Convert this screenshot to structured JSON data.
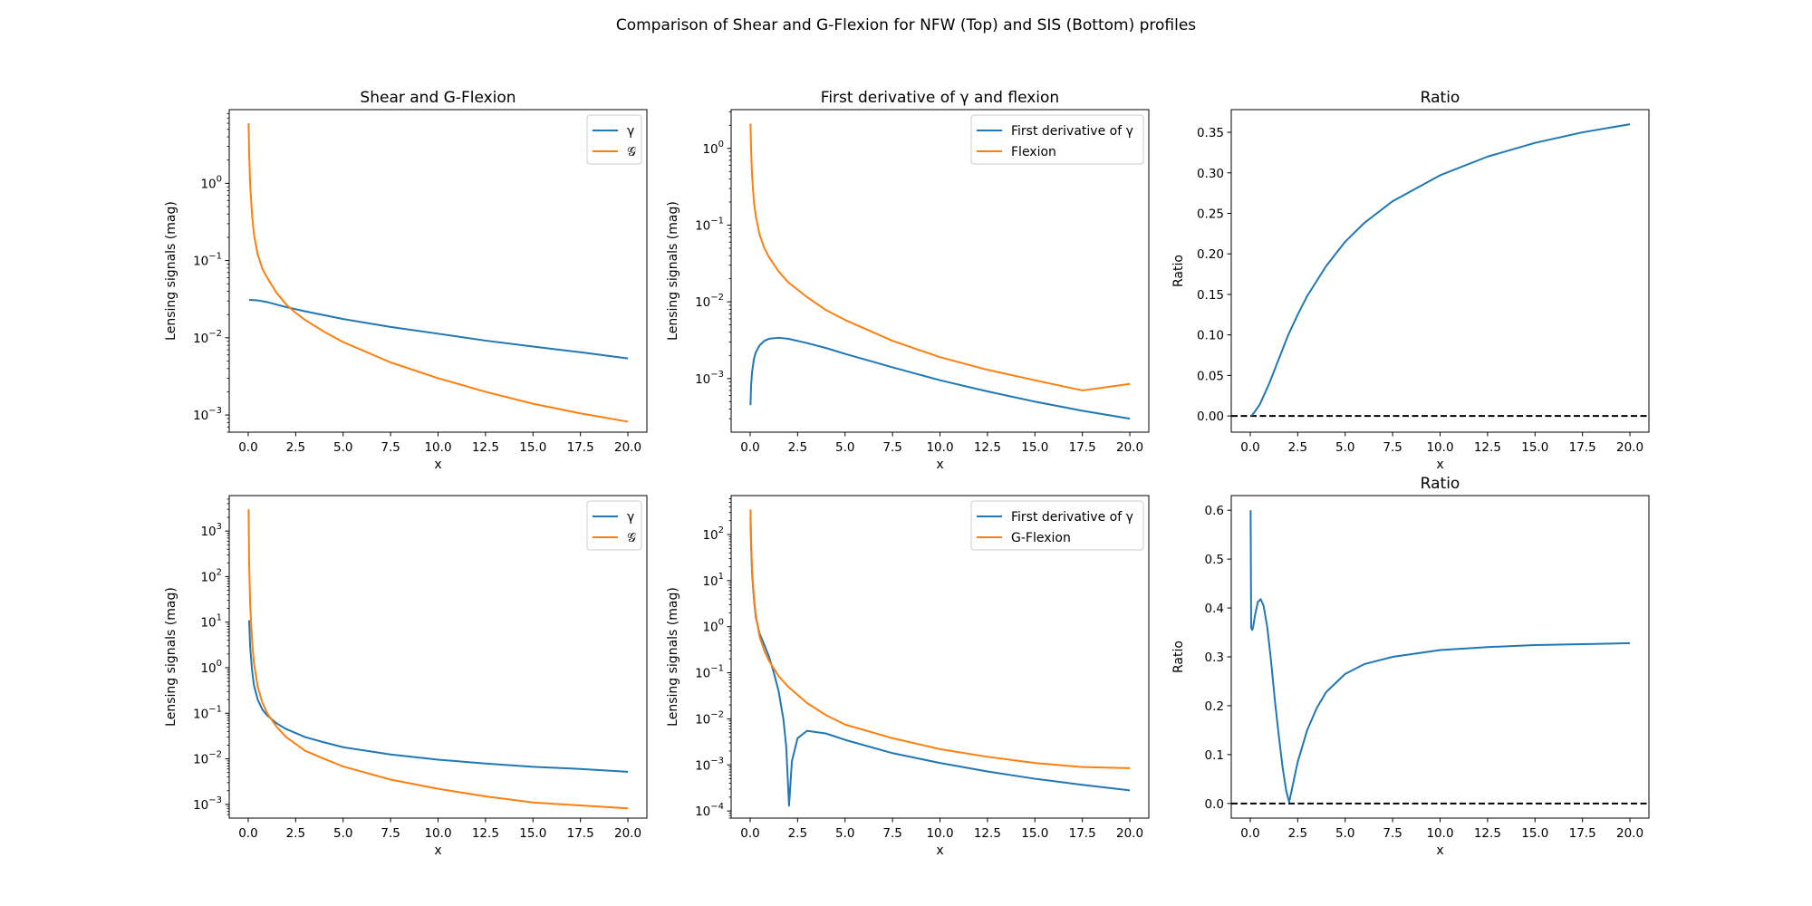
{
  "figure": {
    "suptitle": "Comparison of Shear and G-Flexion for NFW (Top) and SIS (Bottom) profiles"
  },
  "colors": {
    "blue": "#1f77b4",
    "orange": "#ff7f0e",
    "zero_line": "#000000"
  },
  "chart_data": [
    {
      "id": "nfw-shear",
      "type": "line",
      "title": "Shear and G-Flexion",
      "xlabel": "x",
      "ylabel": "Lensing signals (mag)",
      "yscale": "log",
      "xlim": [
        -1.0,
        21.0
      ],
      "ylim": [
        0.0006,
        9
      ],
      "xticks": [
        0,
        2.5,
        5,
        7.5,
        10,
        12.5,
        15,
        17.5,
        20
      ],
      "xtick_labels": [
        "0.0",
        "2.5",
        "5.0",
        "7.5",
        "10.0",
        "12.5",
        "15.0",
        "17.5",
        "20.0"
      ],
      "yticks": [
        0.001,
        0.01,
        0.1,
        1
      ],
      "ytick_labels": [
        [
          "10",
          "−3"
        ],
        [
          "10",
          "−2"
        ],
        [
          "10",
          "−1"
        ],
        [
          "10",
          "0"
        ]
      ],
      "legend": "top-right",
      "series": [
        {
          "name": "γ",
          "color": "#1f77b4",
          "x": [
            0.05,
            0.5,
            1,
            2,
            3,
            5,
            7.5,
            10,
            12.5,
            15,
            17.5,
            20
          ],
          "y": [
            0.031,
            0.0305,
            0.029,
            0.025,
            0.022,
            0.0175,
            0.0138,
            0.0113,
            0.0092,
            0.0077,
            0.0065,
            0.0054
          ]
        },
        {
          "name": "𝒢",
          "color": "#ff7f0e",
          "x": [
            0.02,
            0.05,
            0.1,
            0.2,
            0.3,
            0.5,
            0.75,
            1,
            1.5,
            2,
            2.5,
            3,
            4,
            5,
            7.5,
            10,
            12.5,
            15,
            17.5,
            20
          ],
          "y": [
            6.0,
            2.5,
            1.0,
            0.4,
            0.22,
            0.12,
            0.078,
            0.06,
            0.038,
            0.027,
            0.021,
            0.017,
            0.012,
            0.0088,
            0.0048,
            0.003,
            0.002,
            0.0014,
            0.00105,
            0.00082
          ]
        }
      ]
    },
    {
      "id": "nfw-derivative",
      "type": "line",
      "title": "First derivative of γ and flexion",
      "xlabel": "x",
      "ylabel": "Lensing signals (mag)",
      "yscale": "log",
      "xlim": [
        -1.0,
        21.0
      ],
      "ylim": [
        0.0002,
        3.2
      ],
      "xticks": [
        0,
        2.5,
        5,
        7.5,
        10,
        12.5,
        15,
        17.5,
        20
      ],
      "xtick_labels": [
        "0.0",
        "2.5",
        "5.0",
        "7.5",
        "10.0",
        "12.5",
        "15.0",
        "17.5",
        "20.0"
      ],
      "yticks": [
        0.001,
        0.01,
        0.1,
        1
      ],
      "ytick_labels": [
        [
          "10",
          "−3"
        ],
        [
          "10",
          "−2"
        ],
        [
          "10",
          "−1"
        ],
        [
          "10",
          "0"
        ]
      ],
      "legend": "top-right",
      "series": [
        {
          "name": "First derivative of γ",
          "color": "#1f77b4",
          "x": [
            0.02,
            0.05,
            0.1,
            0.2,
            0.3,
            0.5,
            0.75,
            1,
            1.5,
            2,
            3,
            4,
            5,
            7.5,
            10,
            12.5,
            15,
            17.5,
            20
          ],
          "y": [
            0.00045,
            0.0008,
            0.0012,
            0.0018,
            0.0022,
            0.0027,
            0.0031,
            0.0033,
            0.0034,
            0.0033,
            0.0029,
            0.0025,
            0.0021,
            0.0014,
            0.00095,
            0.00068,
            0.0005,
            0.00038,
            0.0003
          ]
        },
        {
          "name": "Flexion",
          "color": "#ff7f0e",
          "x": [
            0.02,
            0.05,
            0.1,
            0.2,
            0.3,
            0.5,
            0.75,
            1,
            1.5,
            2,
            3,
            4,
            5,
            7.5,
            10,
            12.5,
            15,
            17.5,
            20
          ],
          "y": [
            2.1,
            1.0,
            0.45,
            0.2,
            0.13,
            0.075,
            0.05,
            0.038,
            0.025,
            0.018,
            0.0115,
            0.0078,
            0.0058,
            0.0031,
            0.0019,
            0.0013,
            0.00095,
            0.0007,
            0.00085
          ]
        }
      ]
    },
    {
      "id": "nfw-ratio",
      "type": "line",
      "title": "Ratio",
      "xlabel": "x",
      "ylabel": "Ratio",
      "yscale": "linear",
      "xlim": [
        -1.0,
        21.0
      ],
      "ylim": [
        -0.02,
        0.378
      ],
      "xticks": [
        0,
        2.5,
        5,
        7.5,
        10,
        12.5,
        15,
        17.5,
        20
      ],
      "xtick_labels": [
        "0.0",
        "2.5",
        "5.0",
        "7.5",
        "10.0",
        "12.5",
        "15.0",
        "17.5",
        "20.0"
      ],
      "yticks": [
        0,
        0.05,
        0.1,
        0.15,
        0.2,
        0.25,
        0.3,
        0.35
      ],
      "ytick_labels": [
        "0.00",
        "0.05",
        "0.10",
        "0.15",
        "0.20",
        "0.25",
        "0.30",
        "0.35"
      ],
      "hline": 0,
      "series": [
        {
          "name": "",
          "color": "#1f77b4",
          "x": [
            0.05,
            0.2,
            0.5,
            1,
            1.5,
            2,
            2.5,
            3,
            4,
            5,
            6,
            7.5,
            10,
            12.5,
            15,
            17.5,
            20
          ],
          "y": [
            0.0,
            0.004,
            0.014,
            0.04,
            0.07,
            0.1,
            0.125,
            0.148,
            0.185,
            0.215,
            0.238,
            0.265,
            0.297,
            0.32,
            0.337,
            0.35,
            0.36
          ]
        }
      ]
    },
    {
      "id": "sis-shear",
      "type": "line",
      "title": "",
      "xlabel": "x",
      "ylabel": "Lensing signals (mag)",
      "yscale": "log",
      "xlim": [
        -1.0,
        21.0
      ],
      "ylim": [
        0.0005,
        6000
      ],
      "xticks": [
        0,
        2.5,
        5,
        7.5,
        10,
        12.5,
        15,
        17.5,
        20
      ],
      "xtick_labels": [
        "0.0",
        "2.5",
        "5.0",
        "7.5",
        "10.0",
        "12.5",
        "15.0",
        "17.5",
        "20.0"
      ],
      "yticks": [
        0.001,
        0.01,
        0.1,
        1,
        10,
        100,
        1000
      ],
      "ytick_labels": [
        [
          "10",
          "−3"
        ],
        [
          "10",
          "−2"
        ],
        [
          "10",
          "−1"
        ],
        [
          "10",
          "0"
        ],
        [
          "10",
          "1"
        ],
        [
          "10",
          "2"
        ],
        [
          "10",
          "3"
        ]
      ],
      "legend": "top-right",
      "series": [
        {
          "name": "γ",
          "color": "#1f77b4",
          "x": [
            0.05,
            0.1,
            0.2,
            0.3,
            0.5,
            0.75,
            1,
            1.5,
            2,
            3,
            4,
            5,
            7.5,
            10,
            12.5,
            15,
            17.5,
            20
          ],
          "y": [
            11,
            3,
            0.9,
            0.42,
            0.2,
            0.12,
            0.09,
            0.06,
            0.045,
            0.03,
            0.023,
            0.018,
            0.0125,
            0.0096,
            0.0079,
            0.0067,
            0.006,
            0.0052
          ]
        },
        {
          "name": "𝒢",
          "color": "#ff7f0e",
          "x": [
            0.02,
            0.05,
            0.1,
            0.2,
            0.3,
            0.5,
            0.75,
            1,
            1.5,
            2,
            3,
            4,
            5,
            7.5,
            10,
            12.5,
            15,
            17.5,
            20
          ],
          "y": [
            3000,
            200,
            26,
            4,
            1.3,
            0.38,
            0.17,
            0.1,
            0.05,
            0.03,
            0.015,
            0.01,
            0.0068,
            0.0035,
            0.0022,
            0.0015,
            0.0011,
            0.00095,
            0.00082
          ]
        }
      ]
    },
    {
      "id": "sis-derivative",
      "type": "line",
      "title": "",
      "xlabel": "x",
      "ylabel": "Lensing signals (mag)",
      "yscale": "log",
      "xlim": [
        -1.0,
        21.0
      ],
      "ylim": [
        7e-05,
        700
      ],
      "xticks": [
        0,
        2.5,
        5,
        7.5,
        10,
        12.5,
        15,
        17.5,
        20
      ],
      "xtick_labels": [
        "0.0",
        "2.5",
        "5.0",
        "7.5",
        "10.0",
        "12.5",
        "15.0",
        "17.5",
        "20.0"
      ],
      "yticks": [
        0.0001,
        0.001,
        0.01,
        0.1,
        1,
        10,
        100
      ],
      "ytick_labels": [
        [
          "10",
          "−4"
        ],
        [
          "10",
          "−3"
        ],
        [
          "10",
          "−2"
        ],
        [
          "10",
          "−1"
        ],
        [
          "10",
          "0"
        ],
        [
          "10",
          "1"
        ],
        [
          "10",
          "2"
        ]
      ],
      "legend": "top-right",
      "series": [
        {
          "name": "First derivative of γ",
          "color": "#1f77b4",
          "x": [
            0.02,
            0.05,
            0.1,
            0.2,
            0.3,
            0.5,
            0.75,
            1,
            1.25,
            1.5,
            1.75,
            1.9,
            2.05,
            2.2,
            2.5,
            3,
            4,
            5,
            7.5,
            10,
            12.5,
            15,
            17.5,
            20
          ],
          "y": [
            250,
            60,
            15,
            4,
            1.6,
            0.7,
            0.4,
            0.22,
            0.1,
            0.04,
            0.01,
            0.0025,
            0.00013,
            0.0012,
            0.0038,
            0.0055,
            0.0048,
            0.0035,
            0.0018,
            0.0011,
            0.00072,
            0.0005,
            0.00037,
            0.00028
          ]
        },
        {
          "name": "G-Flexion",
          "color": "#ff7f0e",
          "x": [
            0.02,
            0.05,
            0.1,
            0.2,
            0.3,
            0.5,
            0.75,
            1,
            1.5,
            2,
            3,
            4,
            5,
            7.5,
            10,
            12.5,
            15,
            17.5,
            20
          ],
          "y": [
            350,
            80,
            18,
            4.5,
            1.8,
            0.6,
            0.3,
            0.18,
            0.085,
            0.05,
            0.022,
            0.012,
            0.0075,
            0.0038,
            0.0022,
            0.0015,
            0.0011,
            0.0009,
            0.00085
          ]
        }
      ]
    },
    {
      "id": "sis-ratio",
      "type": "line",
      "title": "Ratio",
      "xlabel": "x",
      "ylabel": "Ratio",
      "yscale": "linear",
      "xlim": [
        -1.0,
        21.0
      ],
      "ylim": [
        -0.03,
        0.63
      ],
      "xticks": [
        0,
        2.5,
        5,
        7.5,
        10,
        12.5,
        15,
        17.5,
        20
      ],
      "xtick_labels": [
        "0.0",
        "2.5",
        "5.0",
        "7.5",
        "10.0",
        "12.5",
        "15.0",
        "17.5",
        "20.0"
      ],
      "yticks": [
        0,
        0.1,
        0.2,
        0.3,
        0.4,
        0.5,
        0.6
      ],
      "ytick_labels": [
        "0.0",
        "0.1",
        "0.2",
        "0.3",
        "0.4",
        "0.5",
        "0.6"
      ],
      "hline": 0,
      "series": [
        {
          "name": "",
          "color": "#1f77b4",
          "x": [
            0.02,
            0.05,
            0.1,
            0.15,
            0.25,
            0.4,
            0.55,
            0.7,
            0.9,
            1.1,
            1.3,
            1.5,
            1.7,
            1.9,
            2.05,
            2.2,
            2.5,
            3,
            3.5,
            4,
            5,
            6,
            7.5,
            10,
            12.5,
            15,
            17.5,
            20
          ],
          "y": [
            0.6,
            0.36,
            0.355,
            0.36,
            0.385,
            0.412,
            0.418,
            0.405,
            0.36,
            0.29,
            0.21,
            0.14,
            0.075,
            0.025,
            0.003,
            0.03,
            0.085,
            0.15,
            0.195,
            0.228,
            0.265,
            0.285,
            0.3,
            0.314,
            0.32,
            0.324,
            0.326,
            0.328
          ]
        }
      ]
    }
  ]
}
